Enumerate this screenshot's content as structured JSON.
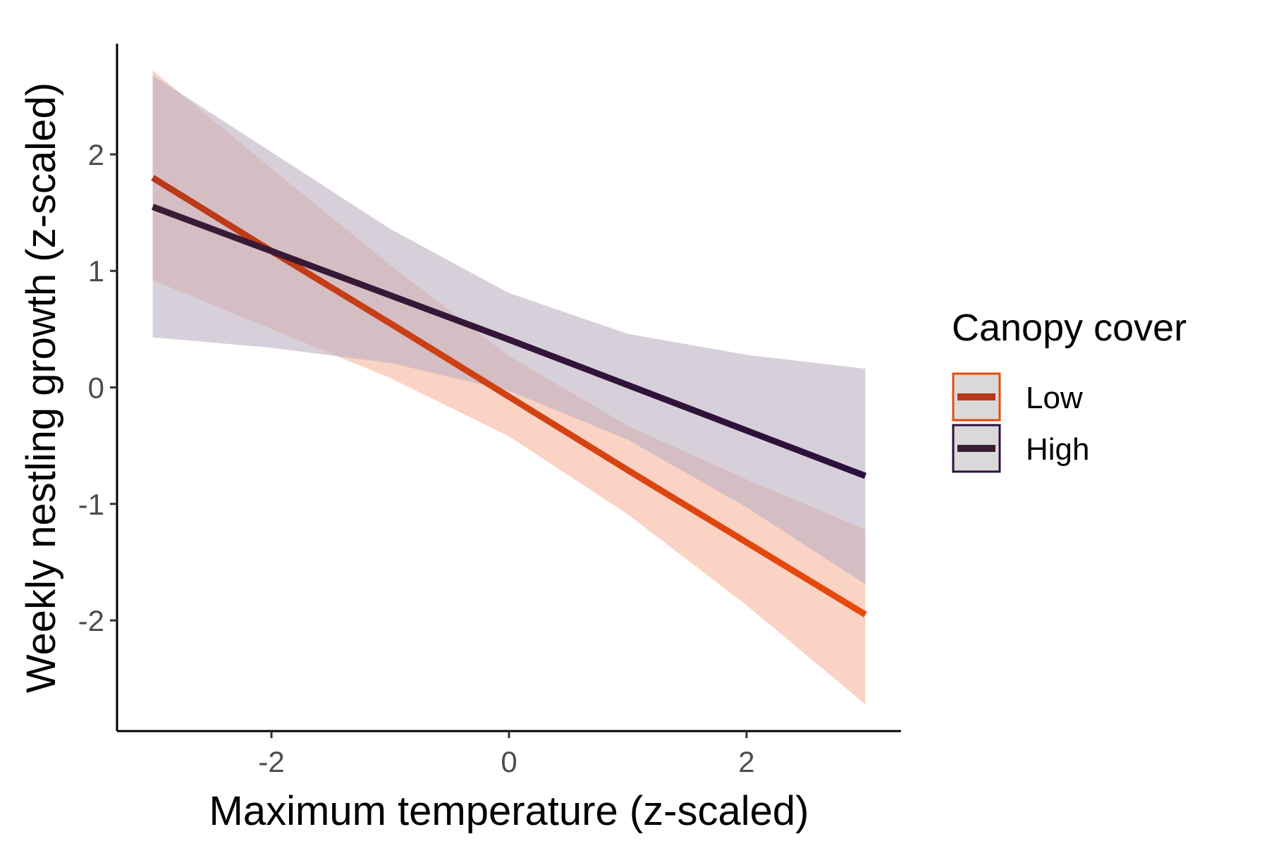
{
  "chart_data": {
    "type": "line",
    "xlabel": "Maximum temperature (z-scaled)",
    "ylabel": "Weekly nestling growth (z-scaled)",
    "xlim": [
      -3.3,
      3.3
    ],
    "ylim": [
      -2.95,
      2.95
    ],
    "x_ticks": [
      -2,
      0,
      2
    ],
    "x_tick_labels": [
      "-2",
      "0",
      "2"
    ],
    "y_ticks": [
      -2,
      -1,
      0,
      1,
      2
    ],
    "y_tick_labels": [
      "-2",
      "-1",
      "0",
      "1",
      "2"
    ],
    "grid": false,
    "legend": {
      "title": "Canopy cover",
      "placement": "right"
    },
    "series": [
      {
        "name": "Low",
        "line_color_start": "#b8391a",
        "line_color_end": "#e84a0c",
        "ribbon_color": "#f6b59e",
        "x": [
          -3,
          -2,
          -1,
          0,
          1,
          2,
          3
        ],
        "fit": [
          1.8,
          1.17,
          0.55,
          -0.08,
          -0.71,
          -1.33,
          -1.95
        ],
        "upper": [
          2.72,
          1.88,
          1.05,
          0.27,
          -0.33,
          -0.79,
          -1.22
        ],
        "lower": [
          0.92,
          0.5,
          0.08,
          -0.42,
          -1.09,
          -1.87,
          -2.72
        ]
      },
      {
        "name": "High",
        "line_color_start": "#3a1c35",
        "line_color_end": "#2c0f3c",
        "ribbon_color": "#bdb1c2",
        "x": [
          -3,
          -2,
          -1,
          0,
          1,
          2,
          3
        ],
        "fit": [
          1.55,
          1.17,
          0.79,
          0.41,
          0.02,
          -0.37,
          -0.76
        ],
        "upper": [
          2.68,
          2.02,
          1.36,
          0.81,
          0.46,
          0.28,
          0.16
        ],
        "lower": [
          0.43,
          0.34,
          0.21,
          -0.03,
          -0.45,
          -1.03,
          -1.69
        ]
      }
    ]
  }
}
